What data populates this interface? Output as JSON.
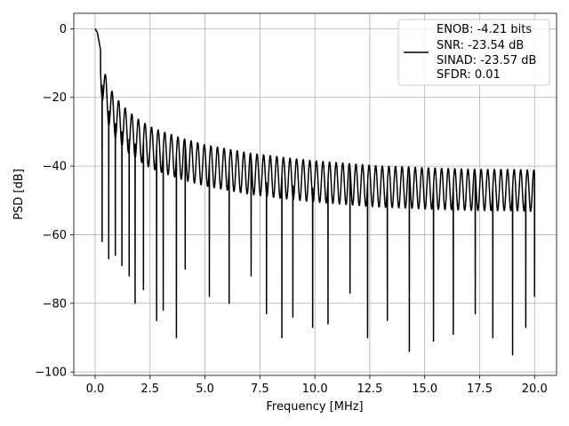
{
  "chart_data": {
    "type": "line",
    "title": "",
    "xlabel": "Frequency [MHz]",
    "ylabel": "PSD [dB]",
    "xlim": [
      -0.97,
      21.0
    ],
    "ylim": [
      -101.0,
      4.5
    ],
    "xticks": [
      0.0,
      2.5,
      5.0,
      7.5,
      10.0,
      12.5,
      15.0,
      17.5,
      20.0
    ],
    "xtick_labels": [
      "0.0",
      "2.5",
      "5.0",
      "7.5",
      "10.0",
      "12.5",
      "15.0",
      "17.5",
      "20.0"
    ],
    "yticks": [
      0,
      -20,
      -40,
      -60,
      -80,
      -100
    ],
    "ytick_labels": [
      "0",
      "−20",
      "−40",
      "−60",
      "−80",
      "−100"
    ],
    "grid": true,
    "line_color": "#000000",
    "legend": {
      "placement": "top-right",
      "entries": [
        "ENOB: -4.21 bits",
        "SNR: -23.54 dB",
        "SINAD: -23.57 dB",
        "SFDR: 0.01"
      ]
    },
    "series": [
      {
        "envelope_x": [
          0.0,
          0.1,
          0.45,
          0.7,
          1.0,
          1.5,
          2.0,
          2.5,
          3.0,
          4.0,
          5.0,
          6.0,
          7.0,
          8.0,
          9.0,
          10.0,
          11.0,
          12.0,
          13.0,
          14.0,
          15.0,
          16.0,
          17.0,
          18.0,
          19.0,
          20.0
        ],
        "envelope_y": [
          0.0,
          -1.0,
          -13.0,
          -17.5,
          -20.5,
          -24.0,
          -26.5,
          -28.5,
          -29.8,
          -32.0,
          -33.8,
          -35.0,
          -36.2,
          -37.0,
          -37.8,
          -38.5,
          -39.0,
          -39.5,
          -40.0,
          -40.2,
          -40.5,
          -40.7,
          -40.9,
          -41.0,
          -41.0,
          -41.2
        ],
        "nulls_x": [
          0.32,
          0.62,
          0.92,
          1.22,
          1.55,
          1.82,
          2.2,
          2.8,
          3.1,
          3.7,
          4.1,
          5.2,
          6.1,
          7.1,
          7.8,
          8.5,
          9.0,
          9.9,
          10.6,
          11.6,
          12.4,
          13.3,
          14.3,
          15.4,
          16.3,
          17.3,
          18.1,
          19.0,
          19.6,
          20.0
        ],
        "nulls_y": [
          -62,
          -67,
          -66,
          -69,
          -72,
          -80,
          -76,
          -85,
          -82,
          -90,
          -70,
          -78,
          -80,
          -72,
          -83,
          -90,
          -84,
          -87,
          -86,
          -77,
          -90,
          -85,
          -94,
          -91,
          -89,
          -83,
          -90,
          -95,
          -87,
          -78
        ]
      }
    ]
  }
}
